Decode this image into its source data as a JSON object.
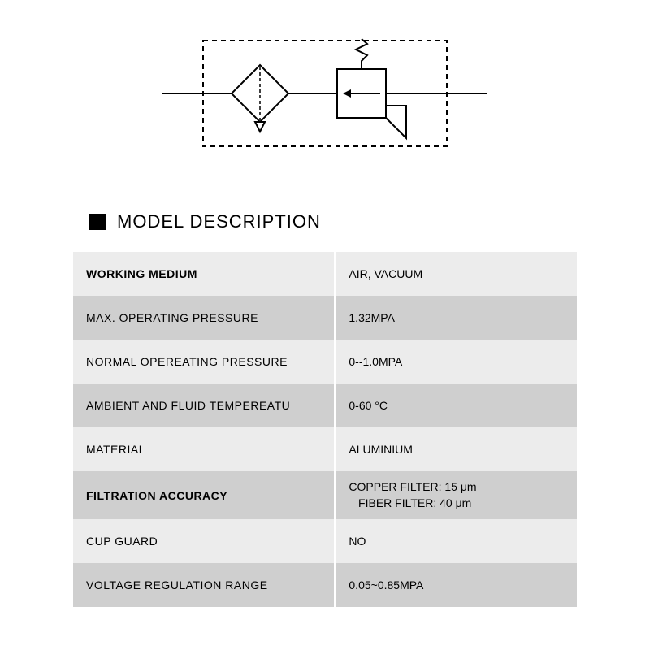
{
  "header": {
    "title": "MODEL DESCRIPTION"
  },
  "diagram": {
    "stroke": "#000000",
    "bg": "#ffffff",
    "dash": "6,5"
  },
  "specs": {
    "rows": [
      {
        "label": "WORKING MEDIUM",
        "value": "AIR, VACUUM",
        "shade": "light",
        "labelBold": true
      },
      {
        "label": "MAX. OPERATING PRESSURE",
        "value": "1.32MPA",
        "shade": "dark",
        "labelBold": false
      },
      {
        "label": "NORMAL OPEREATING PRESSURE",
        "value": "0--1.0MPA",
        "shade": "light",
        "labelBold": false
      },
      {
        "label": "AMBIENT AND FLUID TEMPEREATU",
        "value": "0-60 °C",
        "shade": "dark",
        "labelBold": false
      },
      {
        "label": "MATERIAL",
        "value": "ALUMINIUM",
        "shade": "light",
        "labelBold": false
      },
      {
        "label": "FILTRATION ACCURACY",
        "value": "COPPER FILTER: 15 μm\n   FIBER FILTER: 40 μm",
        "shade": "dark",
        "labelBold": true,
        "multiline": true
      },
      {
        "label": "CUP GUARD",
        "value": "NO",
        "shade": "light",
        "labelBold": false
      },
      {
        "label": "VOLTAGE REGULATION RANGE",
        "value": "0.05~0.85MPA",
        "shade": "dark",
        "labelBold": false
      }
    ]
  },
  "colors": {
    "row_light": "#ececec",
    "row_dark": "#cfcfcf",
    "text": "#000000",
    "bg": "#ffffff"
  }
}
